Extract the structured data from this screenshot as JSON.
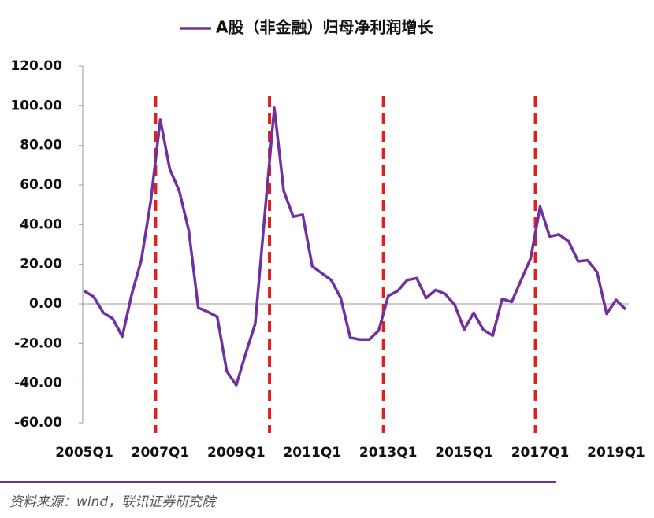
{
  "chart_data": {
    "type": "line",
    "series": [
      {
        "name": "A股（非金融）归母净利润增长",
        "color": "#7030a0",
        "values": [
          6.5,
          3.5,
          -4.5,
          -7.5,
          -16.5,
          5,
          22,
          52,
          93,
          68,
          57,
          37,
          -2,
          -4,
          -6.5,
          -34,
          -41,
          -25,
          -10,
          45,
          99,
          57,
          44,
          45,
          19,
          15.5,
          12,
          3,
          -17,
          -18,
          -18,
          -13.5,
          4,
          6.5,
          12,
          13,
          3,
          7,
          5,
          -0.5,
          -13,
          -4.5,
          -13,
          -16,
          2.5,
          1,
          12,
          23,
          49,
          34,
          35,
          31.5,
          21.5,
          22,
          16,
          -5,
          2,
          -2.8
        ]
      }
    ],
    "categories": [
      "2005Q1",
      null,
      null,
      null,
      null,
      null,
      null,
      null,
      "2007Q1",
      null,
      null,
      null,
      null,
      null,
      null,
      null,
      "2009Q1",
      null,
      null,
      null,
      null,
      null,
      null,
      null,
      "2011Q1",
      null,
      null,
      null,
      null,
      null,
      null,
      null,
      "2013Q1",
      null,
      null,
      null,
      null,
      null,
      null,
      null,
      "2015Q1",
      null,
      null,
      null,
      null,
      null,
      null,
      null,
      "2017Q1",
      null,
      null,
      null,
      null,
      null,
      null,
      null,
      "2019Q1",
      null
    ],
    "ylim": [
      -60,
      120
    ],
    "yticks": [
      {
        "value": -60,
        "label": "-60.00"
      },
      {
        "value": -40,
        "label": "-40.00"
      },
      {
        "value": -20,
        "label": "-20.00"
      },
      {
        "value": 0,
        "label": "0.00"
      },
      {
        "value": 20,
        "label": "20.00"
      },
      {
        "value": 40,
        "label": "40.00"
      },
      {
        "value": 60,
        "label": "60.00"
      },
      {
        "value": 80,
        "label": "80.00"
      },
      {
        "value": 100,
        "label": "100.00"
      },
      {
        "value": 120,
        "label": "120.00"
      }
    ],
    "vline_indices": [
      8,
      20,
      32,
      48
    ],
    "vline_color": "#e02020",
    "legend": "top",
    "source": "资料来源：wind，联讯证券研究院"
  }
}
